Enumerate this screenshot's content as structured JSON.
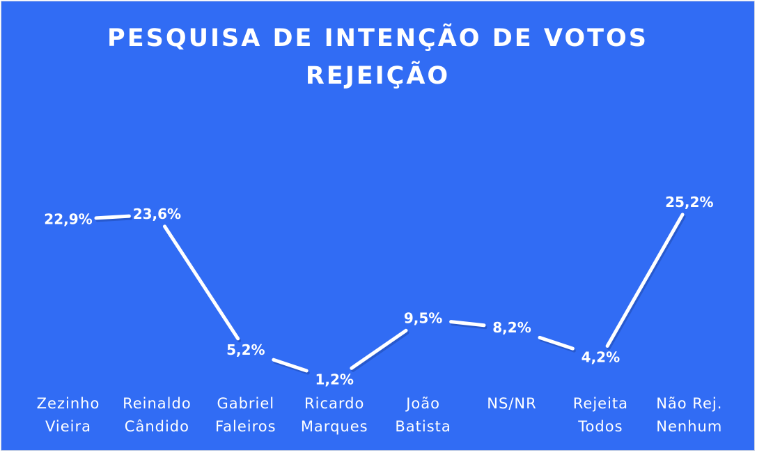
{
  "chart_data": {
    "type": "line",
    "title": [
      "PESQUISA DE INTENÇÃO DE VOTOS",
      "REJEIÇÃO"
    ],
    "categories": [
      [
        "Zezinho",
        "Vieira"
      ],
      [
        "Reinaldo",
        "Cândido"
      ],
      [
        "Gabriel",
        "Faleiros"
      ],
      [
        "Ricardo",
        "Marques"
      ],
      [
        "João",
        "Batista"
      ],
      [
        "NS/NR"
      ],
      [
        "Rejeita",
        "Todos"
      ],
      [
        "Não Rej.",
        "Nenhum"
      ]
    ],
    "values": [
      22.9,
      23.6,
      5.2,
      1.2,
      9.5,
      8.2,
      4.2,
      25.2
    ],
    "data_labels": [
      "22,9%",
      "23,6%",
      "5,2%",
      "1,2%",
      "9,5%",
      "8,2%",
      "4,2%",
      "25,2%"
    ],
    "ylim": [
      0,
      30
    ],
    "grid": false,
    "legend": "none"
  },
  "colors": {
    "background": "#316cf4",
    "line": "#ffffff",
    "line_shadow": "#1f4bb0",
    "text": "#ffffff"
  }
}
